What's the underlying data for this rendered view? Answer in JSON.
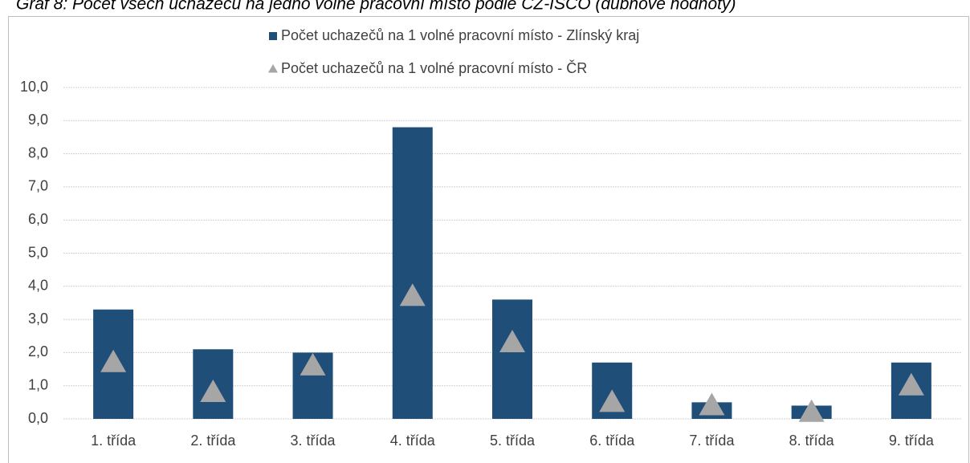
{
  "chart_data": {
    "type": "bar",
    "title": "Graf 8: Počet všech uchazečů na jedno volné pracovní místo podle CZ-ISCO (dubnové hodnoty)",
    "categories": [
      "1. třída",
      "2. třída",
      "3. třída",
      "4. třída",
      "5. třída",
      "6. třída",
      "7. třída",
      "8. třída",
      "9. třída"
    ],
    "series": [
      {
        "name": "Počet uchazečů na 1 volné pracovní místo - Zlínský kraj",
        "color": "#1f4e79",
        "marker": "bar",
        "values": [
          3.3,
          2.1,
          2.0,
          8.8,
          3.6,
          1.7,
          0.5,
          0.4,
          1.7
        ]
      },
      {
        "name": "Počet uchazečů na 1 volné pracovní místo - ČR",
        "color": "#a6a6a6",
        "marker": "triangle",
        "values": [
          1.7,
          0.8,
          1.6,
          3.7,
          2.3,
          0.5,
          0.4,
          0.2,
          1.0
        ]
      }
    ],
    "ylim": [
      0,
      10
    ],
    "yticks": [
      {
        "value": 0,
        "label": "0,0"
      },
      {
        "value": 1,
        "label": "1,0"
      },
      {
        "value": 2,
        "label": "2,0"
      },
      {
        "value": 3,
        "label": "3,0"
      },
      {
        "value": 4,
        "label": "4,0"
      },
      {
        "value": 5,
        "label": "5,0"
      },
      {
        "value": 6,
        "label": "6,0"
      },
      {
        "value": 7,
        "label": "7,0"
      },
      {
        "value": 8,
        "label": "8,0"
      },
      {
        "value": 9,
        "label": "9,0"
      },
      {
        "value": 10,
        "label": "10,0"
      }
    ],
    "grid": true,
    "legend": "top"
  }
}
